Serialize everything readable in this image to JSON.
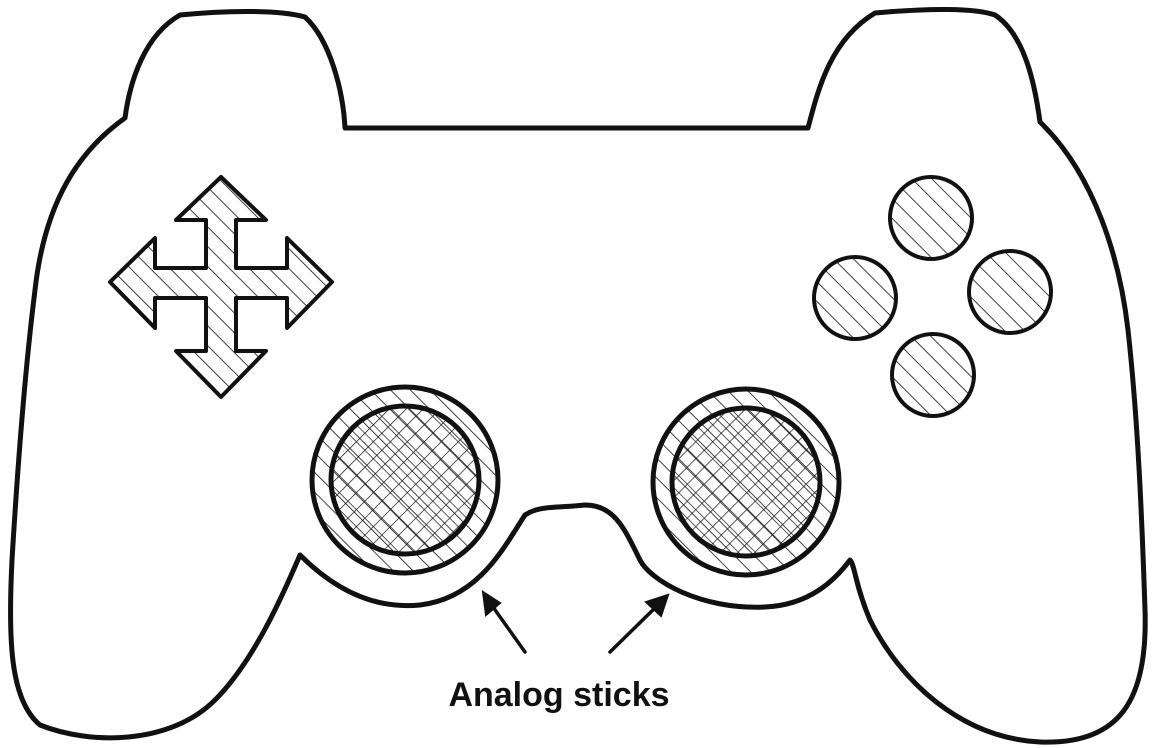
{
  "diagram": {
    "subject": "game-controller",
    "annotation": "Analog sticks",
    "colors": {
      "ink": "#111111",
      "fill": "#ffffff"
    }
  }
}
